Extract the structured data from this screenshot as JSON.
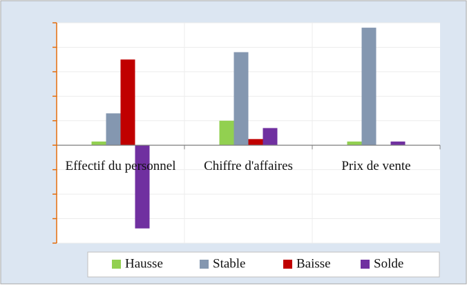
{
  "chart_data": {
    "type": "bar",
    "categories": [
      "Effectif du personnel",
      "Chiffre d'affaires",
      "Prix de vente"
    ],
    "series": [
      {
        "name": "Hausse",
        "color": "#92d050",
        "values": [
          1.5,
          10,
          1.5
        ]
      },
      {
        "name": "Stable",
        "color": "#8497b0",
        "values": [
          13,
          38,
          48
        ]
      },
      {
        "name": "Baisse",
        "color": "#c00000",
        "values": [
          35,
          2.5,
          0
        ]
      },
      {
        "name": "Solde",
        "color": "#7030a0",
        "values": [
          -34,
          7,
          1.5
        ]
      }
    ],
    "ylim": [
      -40,
      50
    ],
    "yticks": [
      -40,
      -30,
      -20,
      -10,
      0,
      10,
      20,
      30,
      40,
      50
    ],
    "grid": true,
    "legend": "bottom"
  }
}
